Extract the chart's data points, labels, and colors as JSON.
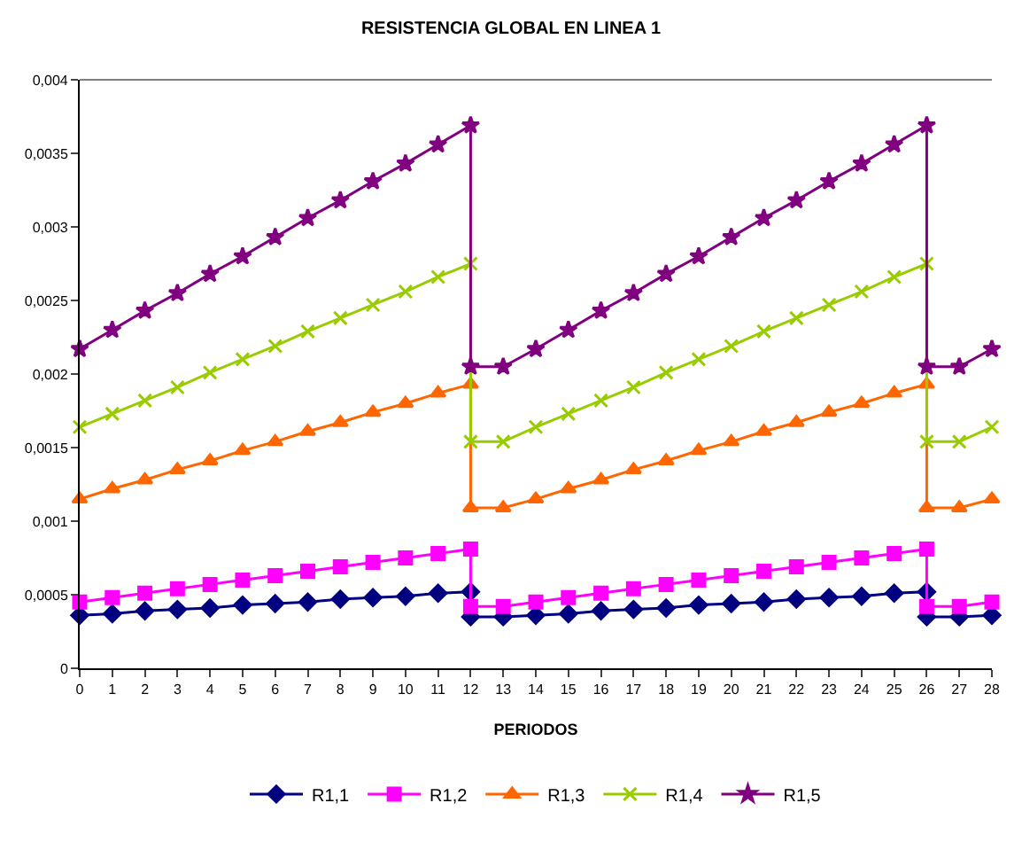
{
  "chart_data": {
    "type": "line",
    "title": "RESISTENCIA GLOBAL EN LINEA 1",
    "xlabel": "PERIODOS",
    "x": [
      0,
      1,
      2,
      3,
      4,
      5,
      6,
      7,
      8,
      9,
      10,
      11,
      12,
      12,
      13,
      14,
      15,
      16,
      17,
      18,
      19,
      20,
      21,
      22,
      23,
      24,
      25,
      26,
      26,
      27,
      28
    ],
    "series": [
      {
        "name": "R1,1",
        "color": "#000080",
        "marker": "diamond",
        "values": [
          0.00036,
          0.00037,
          0.00039,
          0.0004,
          0.00041,
          0.00043,
          0.00044,
          0.00045,
          0.00047,
          0.00048,
          0.00049,
          0.00051,
          0.00052,
          0.00035,
          0.00035,
          0.00036,
          0.00037,
          0.00039,
          0.0004,
          0.00041,
          0.00043,
          0.00044,
          0.00045,
          0.00047,
          0.00048,
          0.00049,
          0.00051,
          0.00052,
          0.00035,
          0.00035,
          0.00036
        ]
      },
      {
        "name": "R1,2",
        "color": "#ff00ff",
        "marker": "square",
        "values": [
          0.00045,
          0.00048,
          0.00051,
          0.00054,
          0.00057,
          0.0006,
          0.00063,
          0.00066,
          0.00069,
          0.00072,
          0.00075,
          0.00078,
          0.00081,
          0.00042,
          0.00042,
          0.00045,
          0.00048,
          0.00051,
          0.00054,
          0.00057,
          0.0006,
          0.00063,
          0.00066,
          0.00069,
          0.00072,
          0.00075,
          0.00078,
          0.00081,
          0.00042,
          0.00042,
          0.00045
        ]
      },
      {
        "name": "R1,3",
        "color": "#ff6600",
        "marker": "triangle",
        "values": [
          0.00115,
          0.00122,
          0.00128,
          0.00135,
          0.00141,
          0.00148,
          0.00154,
          0.00161,
          0.00167,
          0.00174,
          0.0018,
          0.00187,
          0.00193,
          0.00109,
          0.00109,
          0.00115,
          0.00122,
          0.00128,
          0.00135,
          0.00141,
          0.00148,
          0.00154,
          0.00161,
          0.00167,
          0.00174,
          0.0018,
          0.00187,
          0.00193,
          0.00109,
          0.00109,
          0.00115
        ]
      },
      {
        "name": "R1,4",
        "color": "#99cc00",
        "marker": "cross",
        "values": [
          0.00164,
          0.00173,
          0.00182,
          0.00191,
          0.00201,
          0.0021,
          0.00219,
          0.00229,
          0.00238,
          0.00247,
          0.00256,
          0.00266,
          0.00275,
          0.00154,
          0.00154,
          0.00164,
          0.00173,
          0.00182,
          0.00191,
          0.00201,
          0.0021,
          0.00219,
          0.00229,
          0.00238,
          0.00247,
          0.00256,
          0.00266,
          0.00275,
          0.00154,
          0.00154,
          0.00164
        ]
      },
      {
        "name": "R1,5",
        "color": "#800080",
        "marker": "star",
        "values": [
          0.00217,
          0.0023,
          0.00243,
          0.00255,
          0.00268,
          0.0028,
          0.00293,
          0.00306,
          0.00318,
          0.00331,
          0.00343,
          0.00356,
          0.00369,
          0.00205,
          0.00205,
          0.00217,
          0.0023,
          0.00243,
          0.00255,
          0.00268,
          0.0028,
          0.00293,
          0.00306,
          0.00318,
          0.00331,
          0.00343,
          0.00356,
          0.00369,
          0.00205,
          0.00205,
          0.00217
        ]
      }
    ],
    "xlim": [
      0,
      28
    ],
    "xticks": [
      0,
      1,
      2,
      3,
      4,
      5,
      6,
      7,
      8,
      9,
      10,
      11,
      12,
      13,
      14,
      15,
      16,
      17,
      18,
      19,
      20,
      21,
      22,
      23,
      24,
      25,
      26,
      27,
      28
    ],
    "ylim": [
      0,
      0.004
    ],
    "yticks": [
      0,
      {
        "value": 0.0005,
        "label": "0,0005"
      },
      {
        "value": 0.001,
        "label": "0,001"
      },
      {
        "value": 0.0015,
        "label": "0,0015"
      },
      {
        "value": 0.002,
        "label": "0,002"
      },
      {
        "value": 0.0025,
        "label": "0,0025"
      },
      {
        "value": 0.003,
        "label": "0,003"
      },
      {
        "value": 0.0035,
        "label": "0,0035"
      },
      {
        "value": 0.004,
        "label": "0,004"
      }
    ],
    "grid": false,
    "legend": "bottom"
  }
}
